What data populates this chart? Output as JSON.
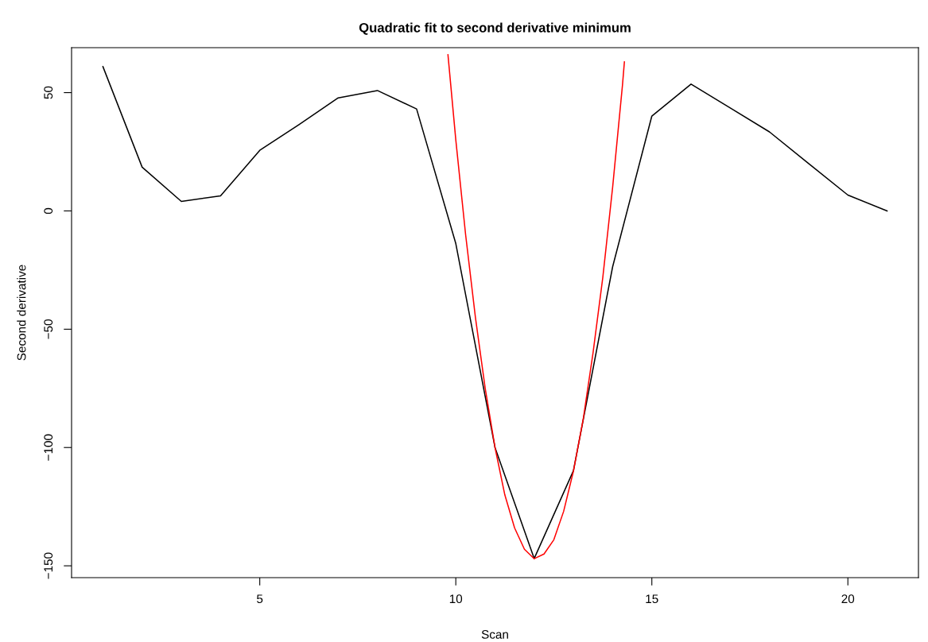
{
  "chart_data": {
    "type": "line",
    "title": "Quadratic fit to second derivative minimum",
    "xlabel": "Scan",
    "ylabel": "Second derivative",
    "xlim": [
      0.2,
      21.8
    ],
    "ylim": [
      -155,
      69
    ],
    "xticks": [
      5,
      10,
      15,
      20
    ],
    "yticks": [
      {
        "value": -150,
        "label": "−150"
      },
      {
        "value": -100,
        "label": "−100"
      },
      {
        "value": -50,
        "label": "−50"
      },
      0,
      50
    ],
    "grid": false,
    "series": [
      {
        "color": "#000000",
        "x": [
          1,
          2,
          3,
          4,
          5,
          6,
          7,
          8,
          9,
          10,
          11,
          12,
          13,
          14,
          15,
          16,
          17,
          18,
          19,
          20,
          21
        ],
        "values": [
          61,
          18.5,
          4,
          6.4,
          25.6,
          36.5,
          47.8,
          50.9,
          43.1,
          -13.8,
          -100,
          -146.9,
          -109.8,
          -23.6,
          40.1,
          53.6,
          43.5,
          33.4,
          20,
          6.7,
          0
        ]
      },
      {
        "color": "#ff0000",
        "x": [
          9.8,
          10,
          10.25,
          10.5,
          10.75,
          11,
          11.25,
          11.5,
          11.75,
          12,
          12.25,
          12.5,
          12.75,
          13,
          13.25,
          13.5,
          13.75,
          14,
          14.25,
          14.3
        ],
        "values": [
          66,
          30,
          -10,
          -45,
          -75,
          -100,
          -120,
          -134,
          -143,
          -147,
          -145,
          -139,
          -127,
          -110,
          -88,
          -60,
          -28,
          10,
          53,
          63
        ]
      }
    ]
  }
}
